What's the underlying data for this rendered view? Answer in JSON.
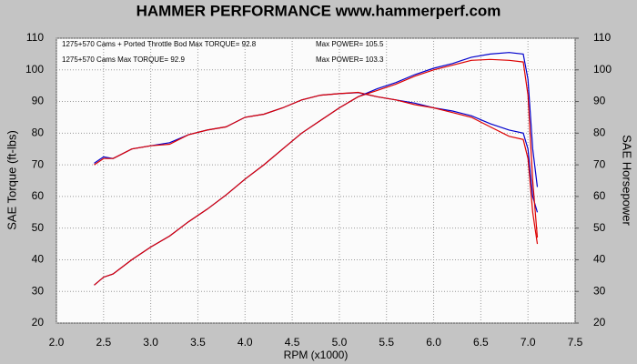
{
  "chart_data": {
    "type": "line",
    "title": "HAMMER PERFORMANCE www.hammerperf.com",
    "xlabel": "RPM (x1000)",
    "ylabel": "SAE Torque (ft-lbs)",
    "y2label": "SAE Horsepower",
    "xlim": [
      2.0,
      7.5
    ],
    "xticks": [
      {
        "value": 2.0,
        "label": "2.0"
      },
      2.5,
      {
        "value": 3.0,
        "label": "3.0"
      },
      3.5,
      {
        "value": 4.0,
        "label": "4.0"
      },
      4.5,
      {
        "value": 5.0,
        "label": "5.0"
      },
      5.5,
      {
        "value": 6.0,
        "label": "6.0"
      },
      6.5,
      {
        "value": 7.0,
        "label": "7.0"
      },
      7.5
    ],
    "ylim": [
      20,
      110
    ],
    "yticks": [
      20,
      30,
      40,
      50,
      60,
      70,
      80,
      90,
      100,
      110
    ],
    "y2lim": [
      20,
      110
    ],
    "y2ticks": [
      20,
      30,
      40,
      50,
      60,
      70,
      80,
      90,
      100,
      110
    ],
    "grid": true,
    "annotations": [
      {
        "text": "1275+570 Cams + Ported Throttle Bod  Max TORQUE= 92.8",
        "color": "#0000cc"
      },
      {
        "text": "Max POWER= 105.5",
        "color": "#0000cc"
      },
      {
        "text": "1275+570 Cams  Max TORQUE= 92.9",
        "color": "#dd0000"
      },
      {
        "text": "Max POWER= 103.3",
        "color": "#dd0000"
      }
    ],
    "x": [
      2.4,
      2.5,
      2.6,
      2.8,
      3.0,
      3.2,
      3.4,
      3.6,
      3.8,
      4.0,
      4.2,
      4.4,
      4.6,
      4.8,
      5.0,
      5.2,
      5.4,
      5.6,
      5.8,
      6.0,
      6.2,
      6.4,
      6.6,
      6.8,
      6.95,
      7.0,
      7.05,
      7.1
    ],
    "series": [
      {
        "color": "#0000cc",
        "values": [
          70.5,
          72.5,
          72,
          75,
          76,
          77,
          79.5,
          81,
          82,
          85,
          86,
          88,
          90.5,
          92,
          92.5,
          92.8,
          91.5,
          90.5,
          89.5,
          88,
          87,
          85.5,
          83,
          81,
          80,
          75,
          60,
          55
        ]
      },
      {
        "color": "#dd0000",
        "values": [
          70,
          72,
          72,
          75,
          76,
          76.5,
          79.5,
          81,
          82,
          85,
          86,
          88,
          90.5,
          92,
          92.5,
          92.9,
          91.5,
          90.5,
          89,
          88,
          86.5,
          85,
          82,
          79,
          78,
          72,
          55,
          45
        ]
      },
      {
        "color": "#0000cc",
        "axis": "y2",
        "values": [
          32,
          34.5,
          35.5,
          40,
          44,
          47.5,
          52,
          56,
          60.5,
          65.5,
          70,
          75,
          80,
          84,
          88,
          91.5,
          94,
          96,
          98.5,
          100.5,
          102,
          104,
          105,
          105.5,
          105,
          97,
          75,
          63
        ]
      },
      {
        "color": "#dd0000",
        "axis": "y2",
        "values": [
          32,
          34.5,
          35.5,
          40,
          44,
          47.5,
          52,
          56,
          60.5,
          65.5,
          70,
          75,
          80,
          84,
          88,
          91.5,
          93.5,
          95.5,
          98,
          100,
          101.5,
          103,
          103.3,
          103,
          102.5,
          92,
          65,
          47
        ]
      }
    ]
  }
}
